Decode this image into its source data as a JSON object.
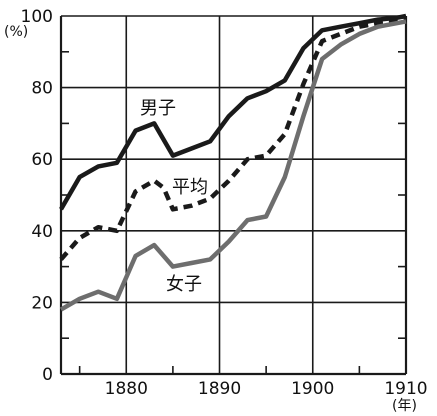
{
  "chart_data": {
    "type": "line",
    "title": "",
    "xlabel": "",
    "ylabel": "",
    "x_unit": "(年)",
    "y_unit": "(%)",
    "xlim": [
      1873,
      1910
    ],
    "ylim": [
      0,
      100
    ],
    "x_ticks": [
      1880,
      1890,
      1900,
      1910
    ],
    "y_ticks": [
      0,
      20,
      40,
      60,
      80,
      100
    ],
    "grid": true,
    "series": [
      {
        "name": "男子",
        "color": "#1a1a1a",
        "style": "solid",
        "x": [
          1873,
          1875,
          1877,
          1879,
          1881,
          1883,
          1885,
          1887,
          1889,
          1891,
          1893,
          1895,
          1897,
          1899,
          1901,
          1903,
          1905,
          1907,
          1909,
          1910
        ],
        "values": [
          46,
          55,
          58,
          59,
          68,
          70,
          61,
          63,
          65,
          72,
          77,
          79,
          82,
          91,
          96,
          97,
          98,
          99,
          99.5,
          100
        ]
      },
      {
        "name": "平均",
        "color": "#1a1a1a",
        "style": "dashed",
        "x": [
          1873,
          1875,
          1877,
          1879,
          1881,
          1883,
          1884,
          1885,
          1887,
          1889,
          1891,
          1893,
          1895,
          1897,
          1899,
          1901,
          1903,
          1905,
          1907,
          1909,
          1910
        ],
        "values": [
          32,
          38,
          41,
          40,
          51,
          54,
          52,
          46,
          47,
          49,
          54,
          60,
          61,
          67,
          81,
          93,
          95,
          97,
          98,
          98.5,
          99
        ]
      },
      {
        "name": "女子",
        "color": "#6e6e6e",
        "style": "solid",
        "x": [
          1873,
          1875,
          1877,
          1879,
          1881,
          1883,
          1885,
          1887,
          1889,
          1891,
          1893,
          1895,
          1897,
          1899,
          1901,
          1903,
          1905,
          1907,
          1909,
          1910
        ],
        "values": [
          18,
          21,
          23,
          21,
          33,
          36,
          30,
          31,
          32,
          37,
          43,
          44,
          55,
          72,
          88,
          92,
          95,
          97,
          98,
          98.5
        ]
      }
    ],
    "annotations": [
      {
        "text": "男子",
        "series": "男子"
      },
      {
        "text": "平均",
        "series": "平均"
      },
      {
        "text": "女子",
        "series": "女子"
      }
    ]
  }
}
